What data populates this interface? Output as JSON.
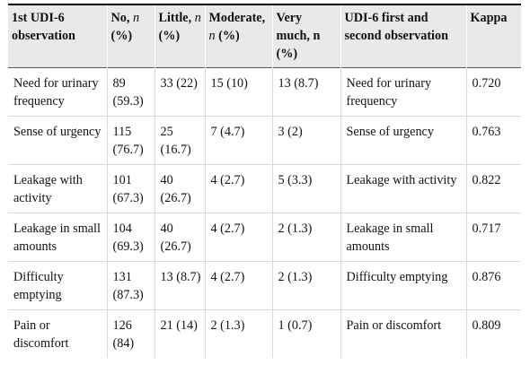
{
  "table": {
    "headers": [
      {
        "parts": [
          "1st UDI-6 observation"
        ]
      },
      {
        "parts": [
          "No, ",
          "n",
          " (%)"
        ]
      },
      {
        "parts": [
          "Little, ",
          "n",
          " (%)"
        ]
      },
      {
        "parts": [
          "Moderate, ",
          "n",
          " (%)"
        ]
      },
      {
        "parts": [
          "Very much, n (%)"
        ]
      },
      {
        "parts": [
          "UDI-6 first and second observation"
        ]
      },
      {
        "parts": [
          "Kappa"
        ]
      }
    ],
    "rows": [
      {
        "item": "Need for urinary frequency",
        "no": "89 (59.3)",
        "little": "33 (22)",
        "moderate": "15 (10)",
        "very_much": "13 (8.7)",
        "item2": "Need for urinary frequency",
        "kappa": "0.720"
      },
      {
        "item": "Sense of urgency",
        "no": "115 (76.7)",
        "little": "25 (16.7)",
        "moderate": "7 (4.7)",
        "very_much": "3 (2)",
        "item2": "Sense of urgency",
        "kappa": "0.763"
      },
      {
        "item": "Leakage with activity",
        "no": "101 (67.3)",
        "little": "40 (26.7)",
        "moderate": "4 (2.7)",
        "very_much": "5 (3.3)",
        "item2": "Leakage with activity",
        "kappa": "0.822"
      },
      {
        "item": "Leakage in small amounts",
        "no": "104 (69.3)",
        "little": "40 (26.7)",
        "moderate": "4 (2.7)",
        "very_much": "2 (1.3)",
        "item2": "Leakage in small amounts",
        "kappa": "0.717"
      },
      {
        "item": "Difficulty emptying",
        "no": "131 (87.3)",
        "little": "13 (8.7)",
        "moderate": "4 (2.7)",
        "very_much": "2 (1.3)",
        "item2": "Difficulty emptying",
        "kappa": "0.876"
      },
      {
        "item": "Pain or discomfort",
        "no": "126 (84)",
        "little": "21 (14)",
        "moderate": "2 (1.3)",
        "very_much": "1 (0.7)",
        "item2": "Pain or discomfort",
        "kappa": "0.809"
      }
    ]
  }
}
